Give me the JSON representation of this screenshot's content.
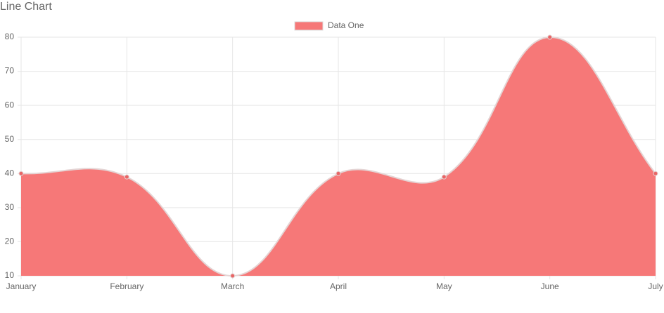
{
  "chart_data": {
    "type": "line",
    "title": "Line Chart",
    "categories": [
      "January",
      "February",
      "March",
      "April",
      "May",
      "June",
      "July"
    ],
    "series": [
      {
        "name": "Data One",
        "color": "#f67878",
        "values": [
          40,
          39,
          10,
          40,
          39,
          80,
          40
        ]
      }
    ],
    "ylim": [
      10,
      80
    ],
    "yticks": [
      10,
      20,
      30,
      40,
      50,
      60,
      70,
      80
    ],
    "grid": true,
    "fill": true,
    "legend": "top"
  }
}
